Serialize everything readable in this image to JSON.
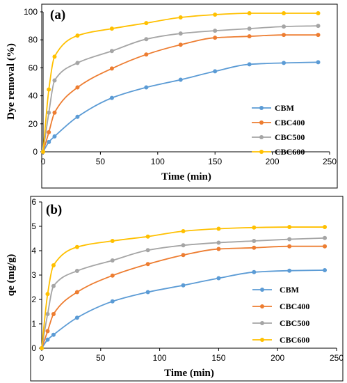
{
  "colors": {
    "CBM": "#5B9BD5",
    "CBC400": "#ED7D31",
    "CBC500": "#A5A5A5",
    "CBC600": "#FFC000"
  },
  "chart_data": [
    {
      "type": "line",
      "panel_label": "(a)",
      "xlabel": "Time (min)",
      "ylabel": "Dye removal (%)",
      "xlim": [
        0,
        250
      ],
      "ylim": [
        0,
        100
      ],
      "xticks": [
        0,
        50,
        100,
        150,
        200,
        250
      ],
      "yticks": [
        0,
        20,
        40,
        60,
        80,
        100
      ],
      "grid": false,
      "legend_position": "bottom-right",
      "x": [
        0,
        5,
        10,
        30,
        60,
        90,
        120,
        150,
        180,
        210,
        240
      ],
      "series": [
        {
          "name": "CBM",
          "values": [
            0,
            7,
            11,
            25,
            38.5,
            46,
            51.5,
            57.5,
            62.5,
            63.5,
            64
          ]
        },
        {
          "name": "CBC400",
          "values": [
            0,
            14,
            28,
            46,
            59.5,
            69.5,
            76.5,
            81.5,
            82.5,
            83.5,
            83.5
          ]
        },
        {
          "name": "CBC500",
          "values": [
            0,
            28,
            51,
            63.5,
            72,
            80.5,
            84.5,
            86.5,
            88,
            89.5,
            90
          ]
        },
        {
          "name": "CBC600",
          "values": [
            0,
            44.5,
            68,
            83,
            88,
            92,
            96,
            98,
            99,
            99,
            99
          ]
        }
      ]
    },
    {
      "type": "line",
      "panel_label": "(b)",
      "xlabel": "Time (min)",
      "ylabel": "qe (mg/g)",
      "xlim": [
        0,
        250
      ],
      "ylim": [
        0,
        6
      ],
      "xticks": [
        0,
        50,
        100,
        150,
        200,
        250
      ],
      "yticks": [
        0,
        1,
        2,
        3,
        4,
        5,
        6
      ],
      "grid": false,
      "legend_position": "bottom-right",
      "x": [
        0,
        5,
        10,
        30,
        60,
        90,
        120,
        150,
        180,
        210,
        240
      ],
      "series": [
        {
          "name": "CBM",
          "values": [
            0,
            0.35,
            0.55,
            1.25,
            1.92,
            2.3,
            2.58,
            2.87,
            3.12,
            3.18,
            3.2
          ]
        },
        {
          "name": "CBC400",
          "values": [
            0,
            0.7,
            1.4,
            2.3,
            2.98,
            3.45,
            3.82,
            4.07,
            4.12,
            4.18,
            4.18
          ]
        },
        {
          "name": "CBC500",
          "values": [
            0,
            1.4,
            2.55,
            3.17,
            3.6,
            4.02,
            4.22,
            4.33,
            4.4,
            4.47,
            4.52
          ]
        },
        {
          "name": "CBC600",
          "values": [
            0,
            2.22,
            3.4,
            4.15,
            4.4,
            4.58,
            4.8,
            4.9,
            4.95,
            4.97,
            4.97
          ]
        }
      ]
    }
  ]
}
